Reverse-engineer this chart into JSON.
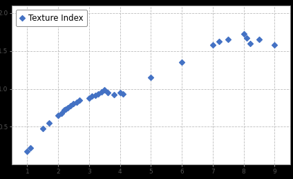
{
  "x": [
    1.0,
    1.1,
    1.5,
    1.7,
    2.0,
    2.1,
    2.2,
    2.25,
    2.3,
    2.4,
    2.5,
    2.6,
    2.7,
    3.0,
    3.1,
    3.2,
    3.3,
    3.4,
    3.5,
    3.6,
    3.8,
    4.0,
    4.1,
    5.0,
    6.0,
    7.0,
    7.2,
    7.5,
    8.0,
    8.1,
    8.2,
    8.5,
    9.0
  ],
  "y": [
    0.18,
    0.22,
    0.48,
    0.55,
    0.65,
    0.68,
    0.72,
    0.73,
    0.75,
    0.78,
    0.8,
    0.82,
    0.85,
    0.88,
    0.9,
    0.91,
    0.93,
    0.96,
    0.99,
    0.95,
    0.92,
    0.95,
    0.93,
    1.15,
    1.35,
    1.58,
    1.62,
    1.65,
    1.72,
    1.67,
    1.6,
    1.65,
    1.58
  ],
  "marker_color": "#4472C4",
  "marker_style": "D",
  "marker_size": 16,
  "legend_label": "Texture Index",
  "xlim": [
    0.5,
    9.5
  ],
  "ylim": [
    0,
    2.1
  ],
  "xticks": [
    1,
    2,
    3,
    4,
    5,
    6,
    7,
    8,
    9
  ],
  "yticks": [
    0.5,
    1.0,
    1.5,
    2.0
  ],
  "grid_color": "#BBBBBB",
  "grid_style": "--",
  "bg_color": "#FFFFFF",
  "fig_bg_color": "#000000",
  "tick_label_size": 6.5,
  "legend_fontsize": 8.5
}
